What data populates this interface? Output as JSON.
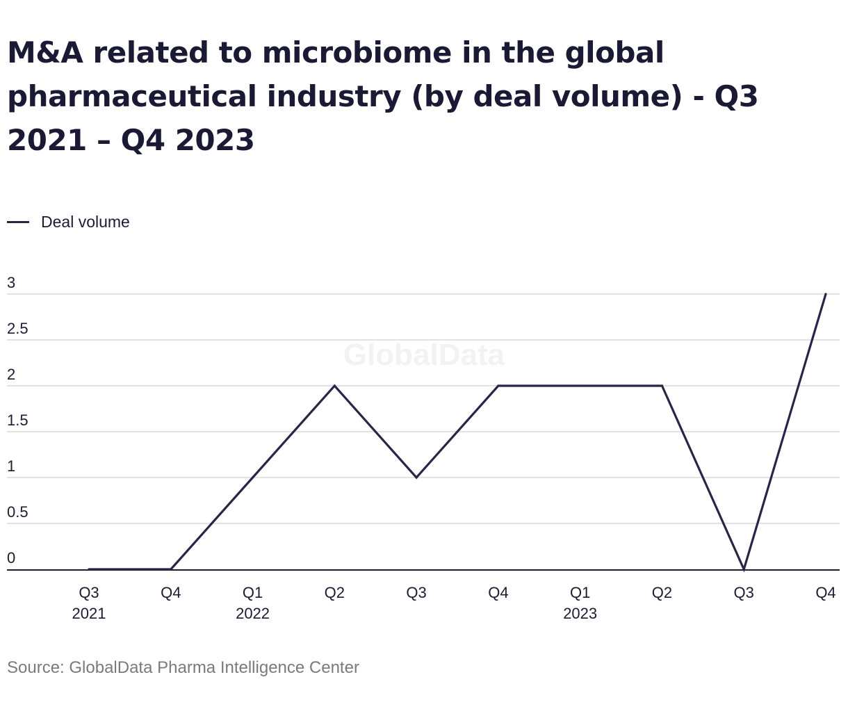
{
  "title": "M&A related to microbiome in the global pharmaceutical industry (by deal volume) - Q3 2021 – Q4 2023",
  "source": "Source: GlobalData Pharma Intelligence Center",
  "watermark": "GlobalData",
  "colors": {
    "line": "#2e2346",
    "grid": "#d9d9d9",
    "axis": "#1d1a33",
    "text": "#1d1a33"
  },
  "chart_data": {
    "type": "line",
    "categories": [
      "Q3 2021",
      "Q4 2021",
      "Q1 2022",
      "Q2 2022",
      "Q3 2022",
      "Q4 2022",
      "Q1 2023",
      "Q2 2023",
      "Q3 2023",
      "Q4 2023"
    ],
    "tick_labels": [
      [
        "Q3",
        "2021"
      ],
      [
        "Q4",
        ""
      ],
      [
        "Q1",
        "2022"
      ],
      [
        "Q2",
        ""
      ],
      [
        "Q3",
        ""
      ],
      [
        "Q4",
        ""
      ],
      [
        "Q1",
        "2023"
      ],
      [
        "Q2",
        ""
      ],
      [
        "Q3",
        ""
      ],
      [
        "Q4",
        ""
      ]
    ],
    "series": [
      {
        "name": "Deal volume",
        "values": [
          0,
          0,
          1,
          2,
          1,
          2,
          2,
          2,
          0,
          3
        ]
      }
    ],
    "yticks": [
      "0",
      "0.5",
      "1",
      "1.5",
      "2",
      "2.5",
      "3"
    ],
    "ylim": [
      0,
      3
    ],
    "grid": true,
    "legend_position": "top-left"
  }
}
